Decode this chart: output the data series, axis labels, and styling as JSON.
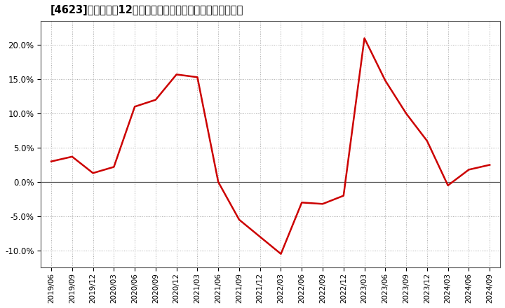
{
  "title": "[4623]　売上高の12か月移動合計の対前年同期増減率の推移",
  "line_color": "#cc0000",
  "background_color": "#ffffff",
  "plot_bg_color": "#ffffff",
  "grid_color": "#aaaaaa",
  "zero_line_color": "#555555",
  "ylim": [
    -0.125,
    0.235
  ],
  "yticks": [
    -0.1,
    -0.05,
    0.0,
    0.05,
    0.1,
    0.15,
    0.2
  ],
  "dates": [
    "2019/06",
    "2019/09",
    "2019/12",
    "2020/03",
    "2020/06",
    "2020/09",
    "2020/12",
    "2021/03",
    "2021/06",
    "2021/09",
    "2021/12",
    "2022/03",
    "2022/06",
    "2022/09",
    "2022/12",
    "2023/03",
    "2023/06",
    "2023/09",
    "2023/12",
    "2024/03",
    "2024/06",
    "2024/09"
  ],
  "values": [
    0.03,
    0.037,
    0.013,
    0.022,
    0.11,
    0.12,
    0.157,
    0.153,
    0.0,
    -0.055,
    -0.08,
    -0.105,
    -0.03,
    -0.032,
    -0.02,
    0.21,
    0.148,
    0.1,
    0.06,
    -0.005,
    0.018,
    0.025
  ],
  "xtick_labels": [
    "2019/06",
    "2019/09",
    "2019/12",
    "2020/03",
    "2020/06",
    "2020/09",
    "2020/12",
    "2021/03",
    "2021/06",
    "2021/09",
    "2021/12",
    "2022/03",
    "2022/06",
    "2022/09",
    "2022/12",
    "2023/03",
    "2023/06",
    "2023/09",
    "2023/12",
    "2024/03",
    "2024/06",
    "2024/09"
  ],
  "title_fontsize": 10.5,
  "tick_fontsize": 7.5,
  "ytick_fontsize": 8.5
}
